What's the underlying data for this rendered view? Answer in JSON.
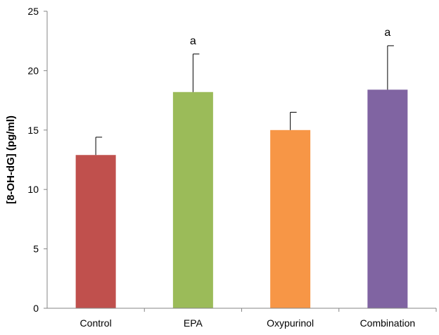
{
  "chart_data": {
    "type": "bar",
    "title": "",
    "xlabel": "",
    "ylabel": "[8-OH-dG] (pg/ml)",
    "ylim": [
      0,
      25
    ],
    "yticks": [
      0,
      5,
      10,
      15,
      20,
      25
    ],
    "grid": false,
    "legend": "none",
    "categories": [
      "Control",
      "EPA",
      "Oxypurinol",
      "Combination"
    ],
    "values": [
      12.9,
      18.2,
      15.0,
      18.4
    ],
    "errors": [
      1.5,
      3.2,
      1.5,
      3.7
    ],
    "significance_labels": [
      "",
      "a",
      "",
      "a"
    ],
    "colors": [
      "#c0504d",
      "#9bbb59",
      "#f79646",
      "#8064a2"
    ]
  }
}
